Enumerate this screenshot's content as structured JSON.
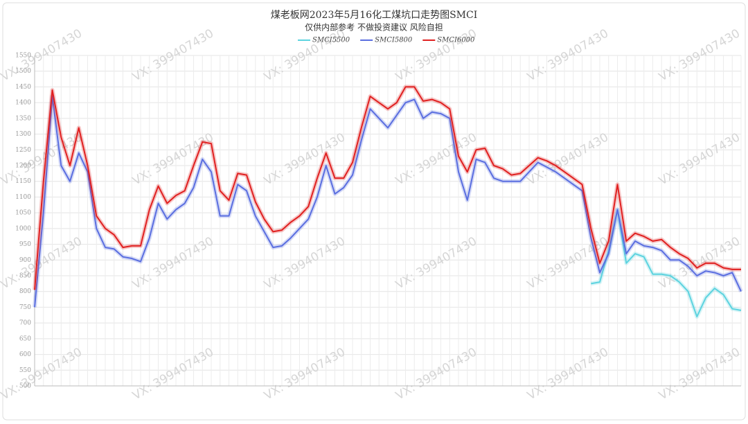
{
  "chart_data": {
    "type": "line",
    "title": "煤老板网2023年5月16化工煤坑口走势图SMCI",
    "subtitle": "仅供内部参考 不做投资建议 风险自担",
    "watermark": "VX: 399407430",
    "categories": [
      null,
      null,
      null,
      null,
      null,
      null,
      null,
      null,
      null,
      null,
      null,
      null,
      null,
      null,
      null,
      null,
      null,
      null,
      null,
      null,
      null,
      null,
      null,
      null,
      null,
      null,
      null,
      null,
      null,
      null,
      null,
      null,
      null,
      null,
      null,
      null,
      null,
      null,
      null,
      null,
      null,
      null,
      null,
      null,
      null,
      null,
      null,
      null,
      null,
      null,
      null,
      null,
      null,
      null,
      null,
      null,
      null,
      null,
      null,
      null,
      null,
      null,
      null,
      null,
      null,
      null,
      null,
      null,
      null,
      null,
      null,
      null,
      null,
      null,
      null,
      null,
      null,
      null,
      null,
      null,
      null
    ],
    "series": [
      {
        "name": "SMCI5500",
        "color": "#5cd3df",
        "values": [
          null,
          null,
          null,
          null,
          null,
          null,
          null,
          null,
          null,
          null,
          null,
          null,
          null,
          null,
          null,
          null,
          null,
          null,
          null,
          null,
          null,
          null,
          null,
          null,
          null,
          null,
          null,
          null,
          null,
          null,
          null,
          null,
          null,
          null,
          null,
          null,
          null,
          null,
          null,
          null,
          null,
          null,
          null,
          null,
          null,
          null,
          null,
          null,
          null,
          null,
          null,
          null,
          null,
          null,
          null,
          null,
          null,
          null,
          null,
          null,
          null,
          null,
          null,
          825,
          830,
          930,
          1060,
          890,
          920,
          910,
          855,
          855,
          850,
          830,
          800,
          720,
          780,
          810,
          790,
          745,
          740
        ]
      },
      {
        "name": "SMCI5800",
        "color": "#5a6ee0",
        "values": [
          750,
          1050,
          1420,
          1200,
          1150,
          1240,
          1180,
          1000,
          940,
          935,
          910,
          905,
          895,
          970,
          1080,
          1030,
          1060,
          1080,
          1130,
          1220,
          1180,
          1040,
          1040,
          1140,
          1120,
          1040,
          990,
          940,
          945,
          970,
          1000,
          1030,
          1100,
          1200,
          1110,
          1130,
          1170,
          1280,
          1380,
          1350,
          1320,
          1360,
          1400,
          1410,
          1350,
          1370,
          1365,
          1350,
          1180,
          1090,
          1220,
          1210,
          1160,
          1150,
          1150,
          1150,
          1180,
          1210,
          1195,
          1180,
          1160,
          1140,
          1120,
          970,
          860,
          920,
          1060,
          920,
          960,
          945,
          940,
          930,
          900,
          900,
          880,
          850,
          865,
          860,
          850,
          860,
          800
        ]
      },
      {
        "name": "SMCI6000",
        "color": "#e02020",
        "values": [
          805,
          1150,
          1440,
          1290,
          1200,
          1320,
          1200,
          1040,
          1000,
          980,
          940,
          945,
          945,
          1060,
          1135,
          1080,
          1105,
          1120,
          1200,
          1275,
          1270,
          1120,
          1090,
          1175,
          1170,
          1085,
          1030,
          990,
          995,
          1020,
          1040,
          1070,
          1160,
          1240,
          1160,
          1160,
          1210,
          1320,
          1420,
          1400,
          1380,
          1400,
          1450,
          1450,
          1405,
          1410,
          1400,
          1380,
          1230,
          1180,
          1250,
          1255,
          1200,
          1190,
          1170,
          1175,
          1200,
          1225,
          1215,
          1200,
          1180,
          1160,
          1140,
          1000,
          890,
          960,
          1140,
          960,
          985,
          975,
          960,
          965,
          940,
          920,
          905,
          875,
          890,
          890,
          875,
          870,
          870
        ]
      }
    ],
    "ylim": [
      500,
      1550
    ],
    "yticks": [
      500,
      550,
      600,
      650,
      700,
      750,
      800,
      850,
      900,
      950,
      1000,
      1050,
      1100,
      1150,
      1200,
      1250,
      1300,
      1350,
      1400,
      1450,
      1500,
      1550
    ],
    "grid": true
  }
}
